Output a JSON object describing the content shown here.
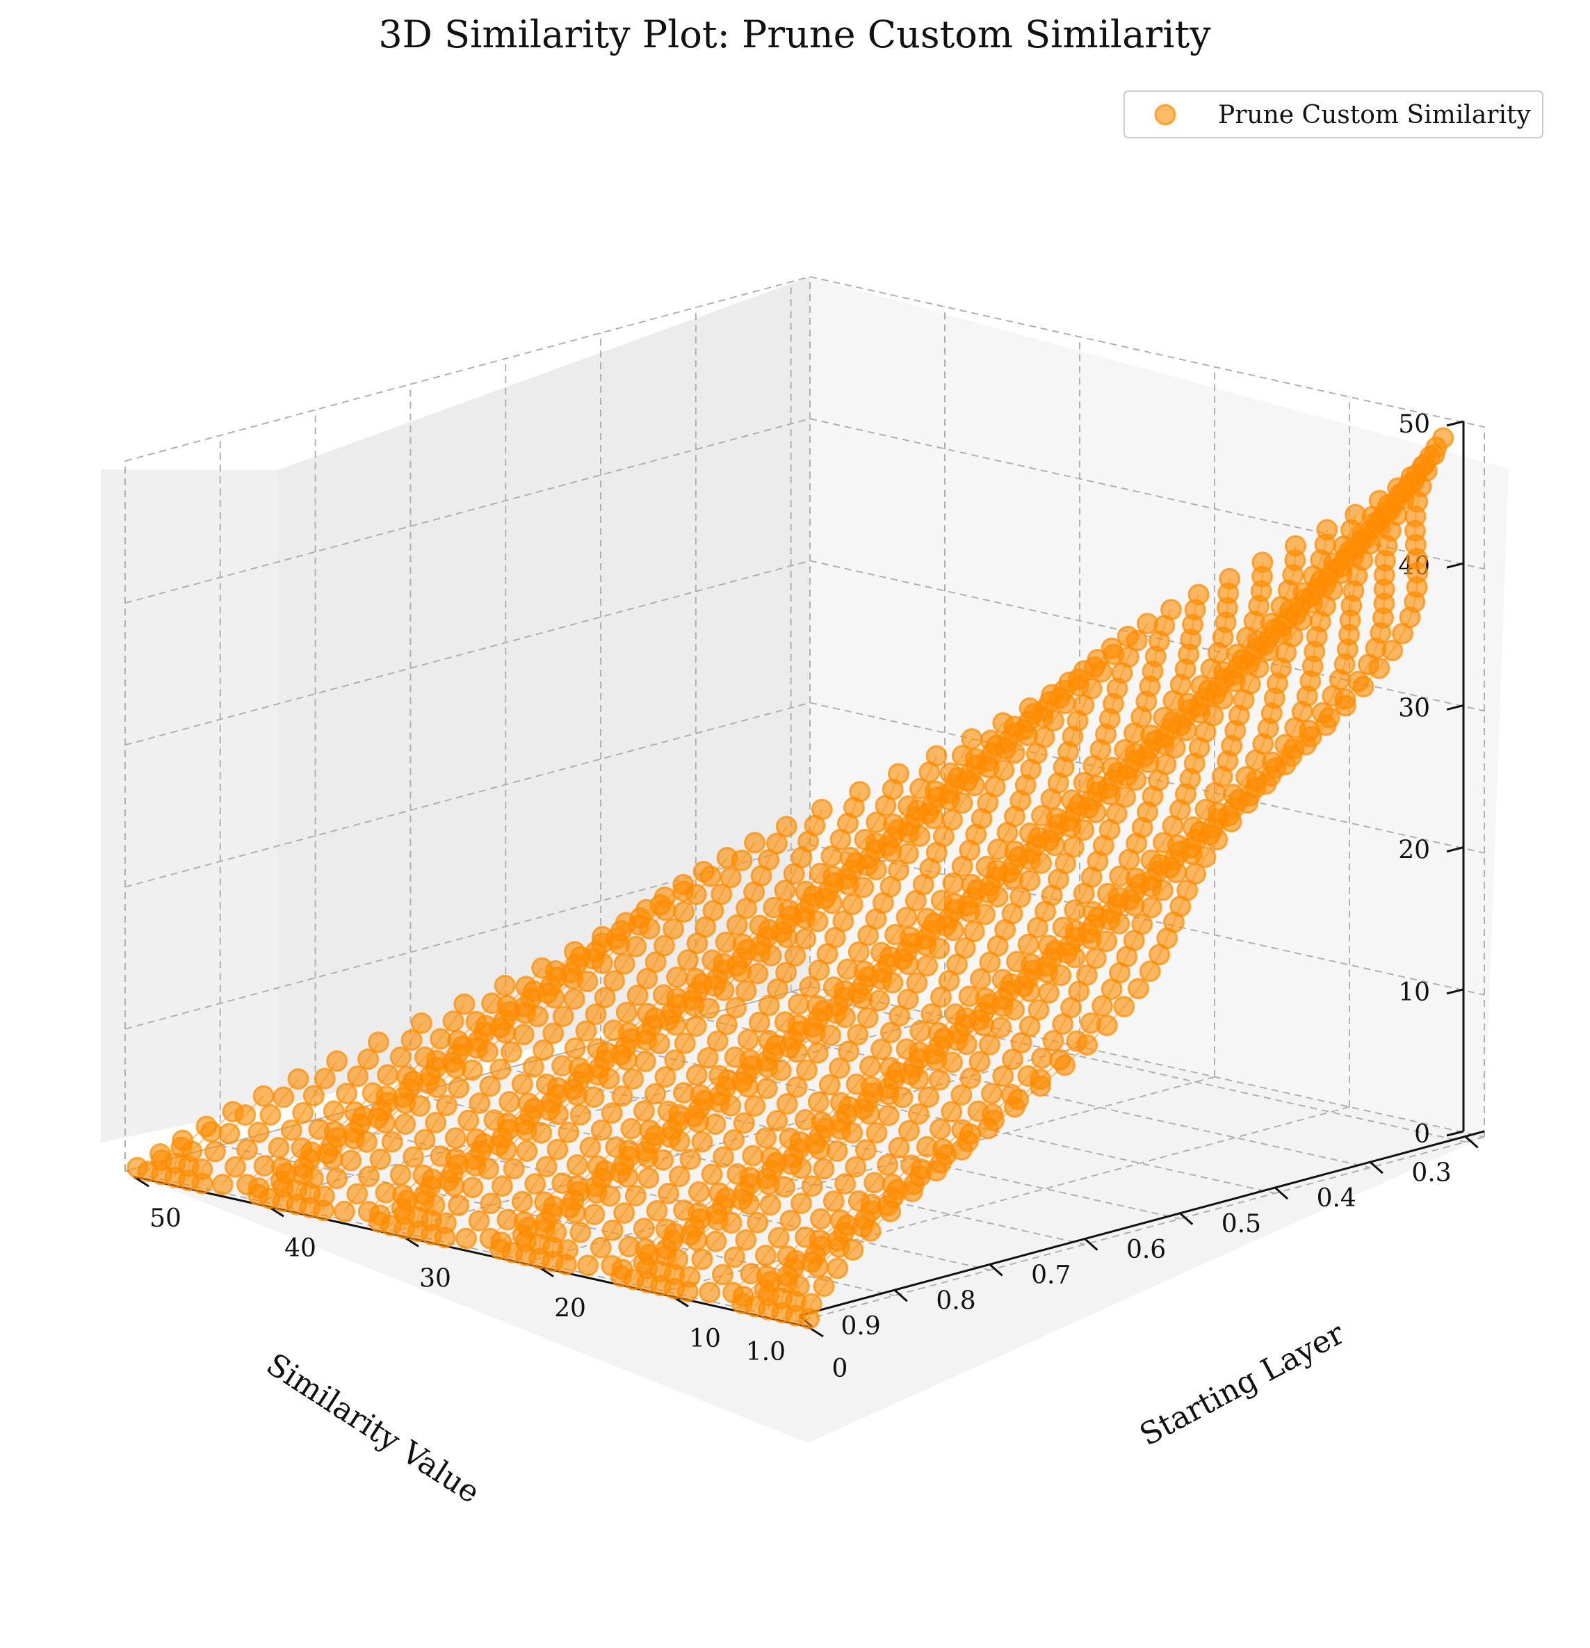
{
  "chart_data": {
    "type": "scatter",
    "projection": "3d",
    "title": "3D Similarity Plot: Prune Custom Similarity",
    "xlabel": "Similarity Value",
    "ylabel": "Starting Layer",
    "zlabel": "",
    "xlim": [
      0.28,
      1.0
    ],
    "ylim": [
      0,
      50
    ],
    "zlim": [
      0,
      50
    ],
    "x_ticks": [
      "0.3",
      "0.4",
      "0.5",
      "0.6",
      "0.7",
      "0.8",
      "0.9",
      "1.0"
    ],
    "y_ticks": [
      "0",
      "10",
      "20",
      "30",
      "40",
      "50"
    ],
    "z_ticks": [
      "0",
      "10",
      "20",
      "30",
      "40",
      "50"
    ],
    "grid": true,
    "legend_position": "top-right",
    "series": [
      {
        "name": "Prune Custom Similarity",
        "color": "#ff8c00"
      }
    ]
  }
}
